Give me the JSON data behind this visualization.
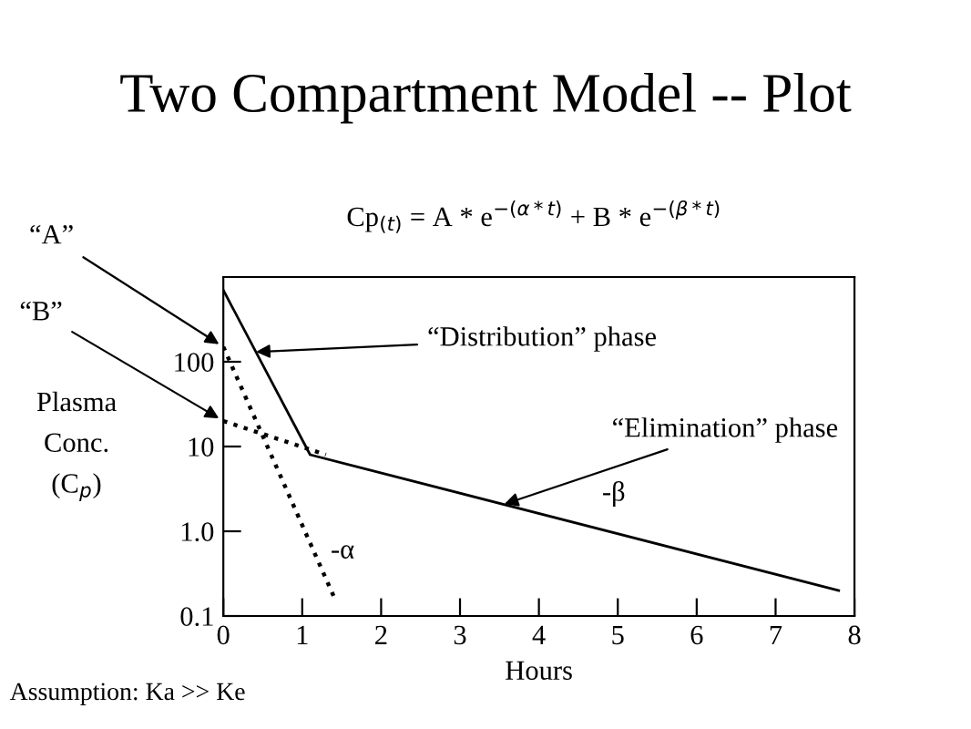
{
  "chart_data": {
    "type": "line",
    "title": "Two Compartment Model -- Plot",
    "subtitle": "Cp$_{(t)}$ = A * e$^{−(α*t)}$ + B * e$^{−(β*t)}$",
    "xlabel": "Hours",
    "ylabel": "Plasma\nConc.\n(C$_{p}$)",
    "series": [
      {
        "color": "#000000",
        "line_style": "solid",
        "x": [
          0,
          1.1,
          7.8
        ],
        "values": [
          700,
          8,
          0.2
        ]
      },
      {
        "color": "#000000",
        "line_style": "dotted",
        "x": [
          0,
          1.4
        ],
        "values": [
          150,
          0.17
        ]
      },
      {
        "color": "#000000",
        "line_style": "dotted",
        "x": [
          0,
          1.3
        ],
        "values": [
          20,
          8
        ]
      }
    ],
    "log": "y",
    "xlim": [
      0,
      8
    ],
    "ylim": [
      0.1,
      1000
    ],
    "xticks": [
      0,
      1,
      2,
      3,
      4,
      5,
      6,
      7,
      8
    ],
    "yticks": [
      {
        "value": 0.1,
        "label": "0.1"
      },
      {
        "value": 1,
        "label": "1.0"
      },
      10,
      100
    ],
    "grid": false,
    "marker": "none",
    "annotations": [
      {
        "text": "“A”",
        "x": 0,
        "y": 150
      },
      {
        "text": "“B”",
        "x": 0,
        "y": 20
      },
      {
        "text": "“Distribution” phase",
        "x": 0.35,
        "y": 130
      },
      {
        "text": "“Elimination” phase",
        "x": 3.5,
        "y": 2.0
      },
      "-α",
      "-β",
      "Assumption: Ka >> Ke"
    ]
  }
}
